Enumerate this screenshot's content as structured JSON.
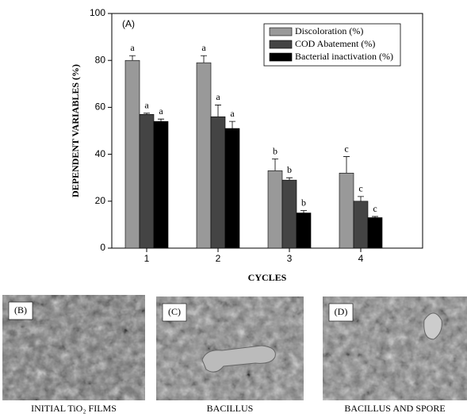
{
  "chart_data": {
    "type": "bar",
    "panel_label": "(A)",
    "xlabel": "CYCLES",
    "ylabel": "DEPENDENT VARIABLES (%)",
    "categories": [
      "1",
      "2",
      "3",
      "4"
    ],
    "series": [
      {
        "name": "Discoloration (%)",
        "color": "#999999",
        "values": [
          80,
          79,
          33,
          32
        ],
        "errors": [
          2,
          3,
          5,
          7
        ],
        "letters": [
          "a",
          "a",
          "b",
          "c"
        ]
      },
      {
        "name": "COD Abatement (%)",
        "color": "#444444",
        "values": [
          57,
          56,
          29,
          20
        ],
        "errors": [
          0.5,
          5,
          1,
          2
        ],
        "letters": [
          "a",
          "a",
          "b",
          "c"
        ]
      },
      {
        "name": "Bacterial inactivation (%)",
        "color": "#000000",
        "values": [
          54,
          51,
          15,
          13
        ],
        "errors": [
          1,
          3,
          1,
          0.5
        ],
        "letters": [
          "a",
          "a",
          "b",
          "c"
        ]
      }
    ],
    "ylim": [
      0,
      100
    ],
    "yticks": [
      0,
      20,
      40,
      60,
      80,
      100
    ],
    "legend": "upper-right"
  },
  "panels": [
    {
      "label": "(B)",
      "caption": "INITIAL TiO₂ FILMS"
    },
    {
      "label": "(C)",
      "caption": "BACILLUS"
    },
    {
      "label": "(D)",
      "caption": "BACILLUS AND SPORE"
    }
  ]
}
